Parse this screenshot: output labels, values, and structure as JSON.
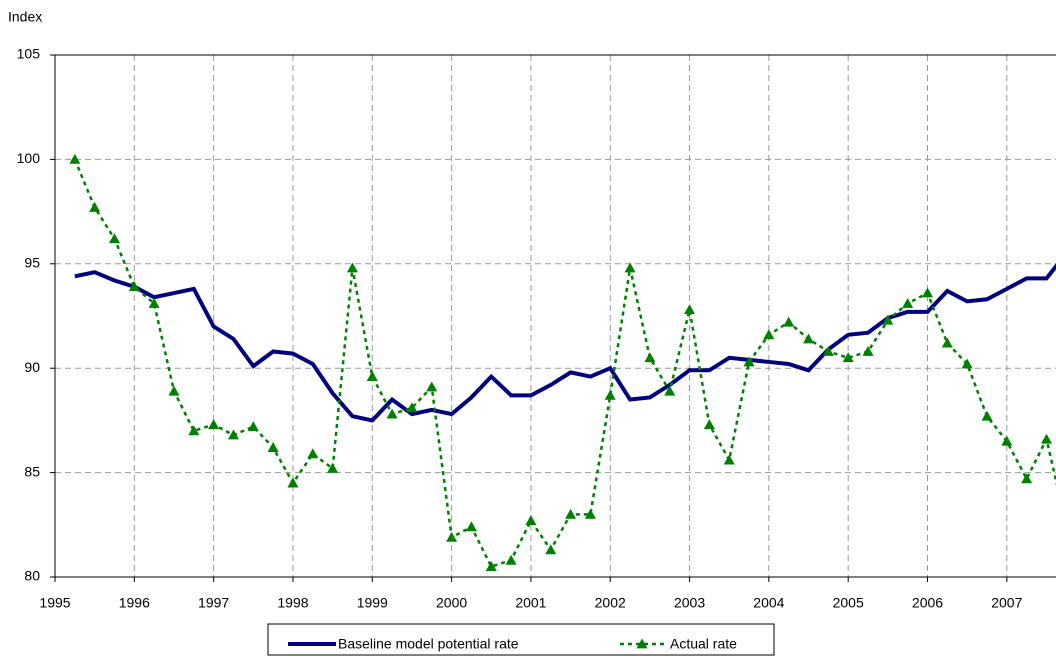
{
  "chart_data": {
    "type": "line",
    "y_label": "Index",
    "x": [
      1995.25,
      1995.5,
      1995.75,
      1996,
      1996.25,
      1996.5,
      1996.75,
      1997,
      1997.25,
      1997.5,
      1997.75,
      1998,
      1998.25,
      1998.5,
      1998.75,
      1999,
      1999.25,
      1999.5,
      1999.75,
      2000,
      2000.25,
      2000.5,
      2000.75,
      2001,
      2001.25,
      2001.5,
      2001.75,
      2002,
      2002.25,
      2002.5,
      2002.75,
      2003,
      2003.25,
      2003.5,
      2003.75,
      2004,
      2004.25,
      2004.5,
      2004.75,
      2005,
      2005.25,
      2005.5,
      2005.75,
      2006,
      2006.25,
      2006.5,
      2006.75,
      2007,
      2007.25,
      2007.5,
      2007.75
    ],
    "series": [
      {
        "name": "Baseline model potential rate",
        "color": "#000080",
        "style": "solid",
        "values": [
          94.4,
          94.6,
          94.2,
          93.9,
          93.4,
          93.6,
          93.8,
          92.0,
          91.4,
          90.1,
          90.8,
          90.7,
          90.2,
          88.8,
          87.7,
          87.5,
          88.5,
          87.8,
          88.0,
          87.8,
          88.6,
          89.6,
          88.7,
          88.7,
          89.2,
          89.8,
          89.6,
          90.0,
          88.5,
          88.6,
          89.2,
          89.9,
          89.9,
          90.5,
          90.4,
          90.3,
          90.2,
          89.9,
          90.9,
          91.6,
          91.7,
          92.4,
          92.7,
          92.7,
          93.7,
          93.2,
          93.3,
          93.8,
          94.3,
          94.3,
          95.5
        ]
      },
      {
        "name": "Actual rate",
        "color": "#008000",
        "style": "dotted-triangles",
        "values": [
          100,
          97.7,
          96.2,
          93.9,
          93.1,
          88.9,
          87.0,
          87.3,
          86.8,
          87.2,
          86.2,
          84.5,
          85.9,
          85.2,
          94.8,
          89.6,
          87.8,
          88.1,
          89.1,
          81.9,
          82.4,
          80.5,
          80.8,
          82.7,
          81.3,
          83.0,
          83.0,
          88.7,
          94.8,
          90.5,
          88.9,
          92.8,
          87.3,
          85.6,
          90.3,
          91.6,
          92.2,
          91.4,
          90.8,
          90.5,
          90.8,
          92.3,
          93.1,
          93.6,
          91.2,
          90.2,
          87.7,
          86.5,
          84.7,
          86.6,
          82.5
        ]
      }
    ],
    "xlim": [
      1995,
      2007.62
    ],
    "xticks": [
      1995,
      1996,
      1997,
      1998,
      1999,
      2000,
      2001,
      2002,
      2003,
      2004,
      2005,
      2006,
      2007
    ],
    "ylim": [
      80,
      105
    ],
    "yticks": [
      80,
      85,
      90,
      95,
      100,
      105
    ],
    "grid": true,
    "legend": "bottom"
  }
}
